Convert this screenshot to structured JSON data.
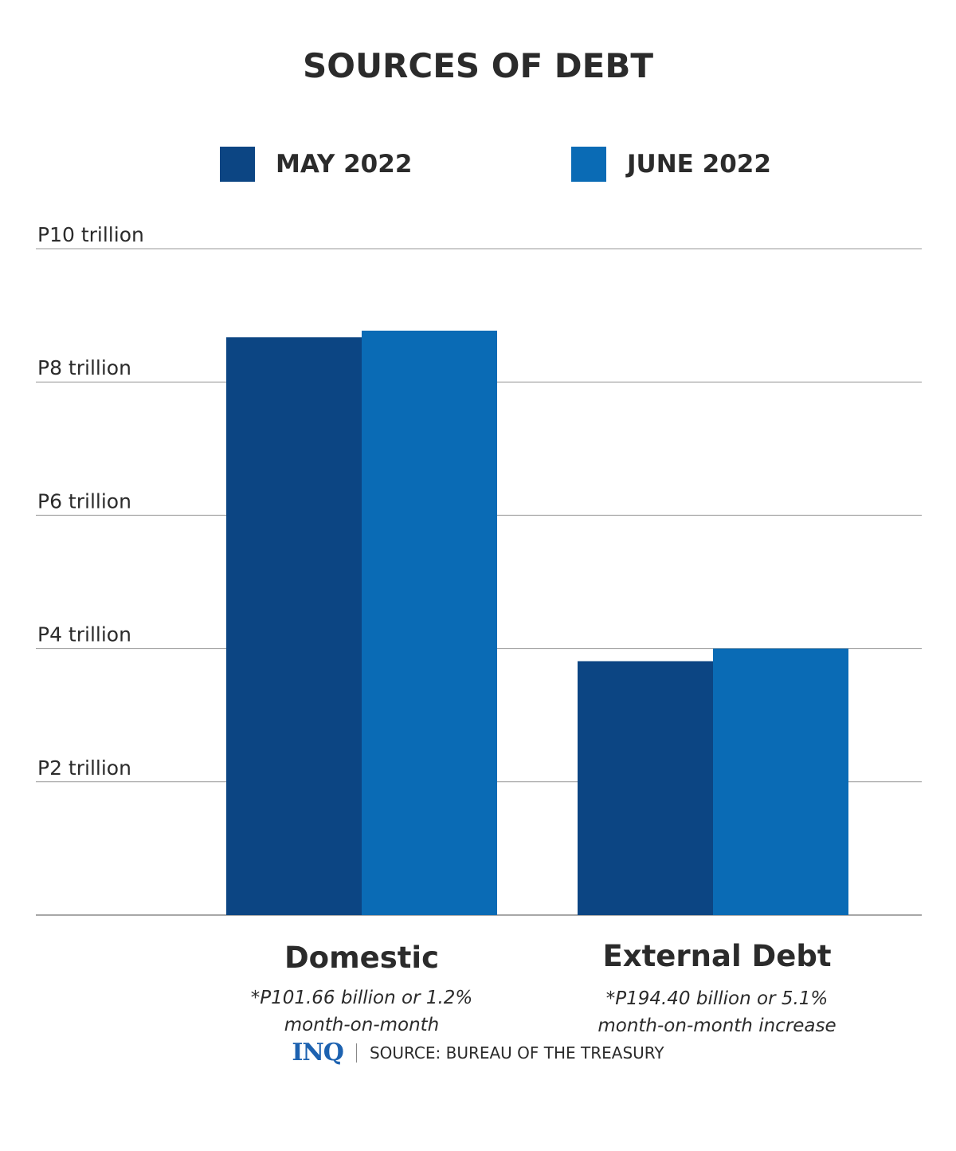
{
  "colors": {
    "may": "#0c4583",
    "june": "#0a6bb5",
    "grid": "#999999",
    "text": "#2b2b2b"
  },
  "chart_data": {
    "type": "bar",
    "title": "SOURCES OF DEBT",
    "categories": [
      "Domestic",
      "External Debt"
    ],
    "category_notes": [
      [
        "*P101.66 billion or 1.2%",
        "month-on-month"
      ],
      [
        "*P194.40 billion or 5.1%",
        "month-on-month increase"
      ]
    ],
    "series": [
      {
        "name": "MAY 2022",
        "values": [
          8.67,
          3.81
        ]
      },
      {
        "name": "JUNE 2022",
        "values": [
          8.77,
          4.0
        ]
      }
    ],
    "ylim": [
      0,
      10
    ],
    "yticks": [
      {
        "value": 0,
        "label": ""
      },
      {
        "value": 2,
        "label": "P2 trillion"
      },
      {
        "value": 4,
        "label": "P4 trillion"
      },
      {
        "value": 6,
        "label": "P6 trillion"
      },
      {
        "value": 8,
        "label": "P8 trillion"
      },
      {
        "value": 10,
        "label": "P10 trillion"
      }
    ],
    "grid": true,
    "legend": "top"
  },
  "footer": {
    "logo": "INQ",
    "source": "SOURCE: BUREAU OF THE TREASURY"
  }
}
